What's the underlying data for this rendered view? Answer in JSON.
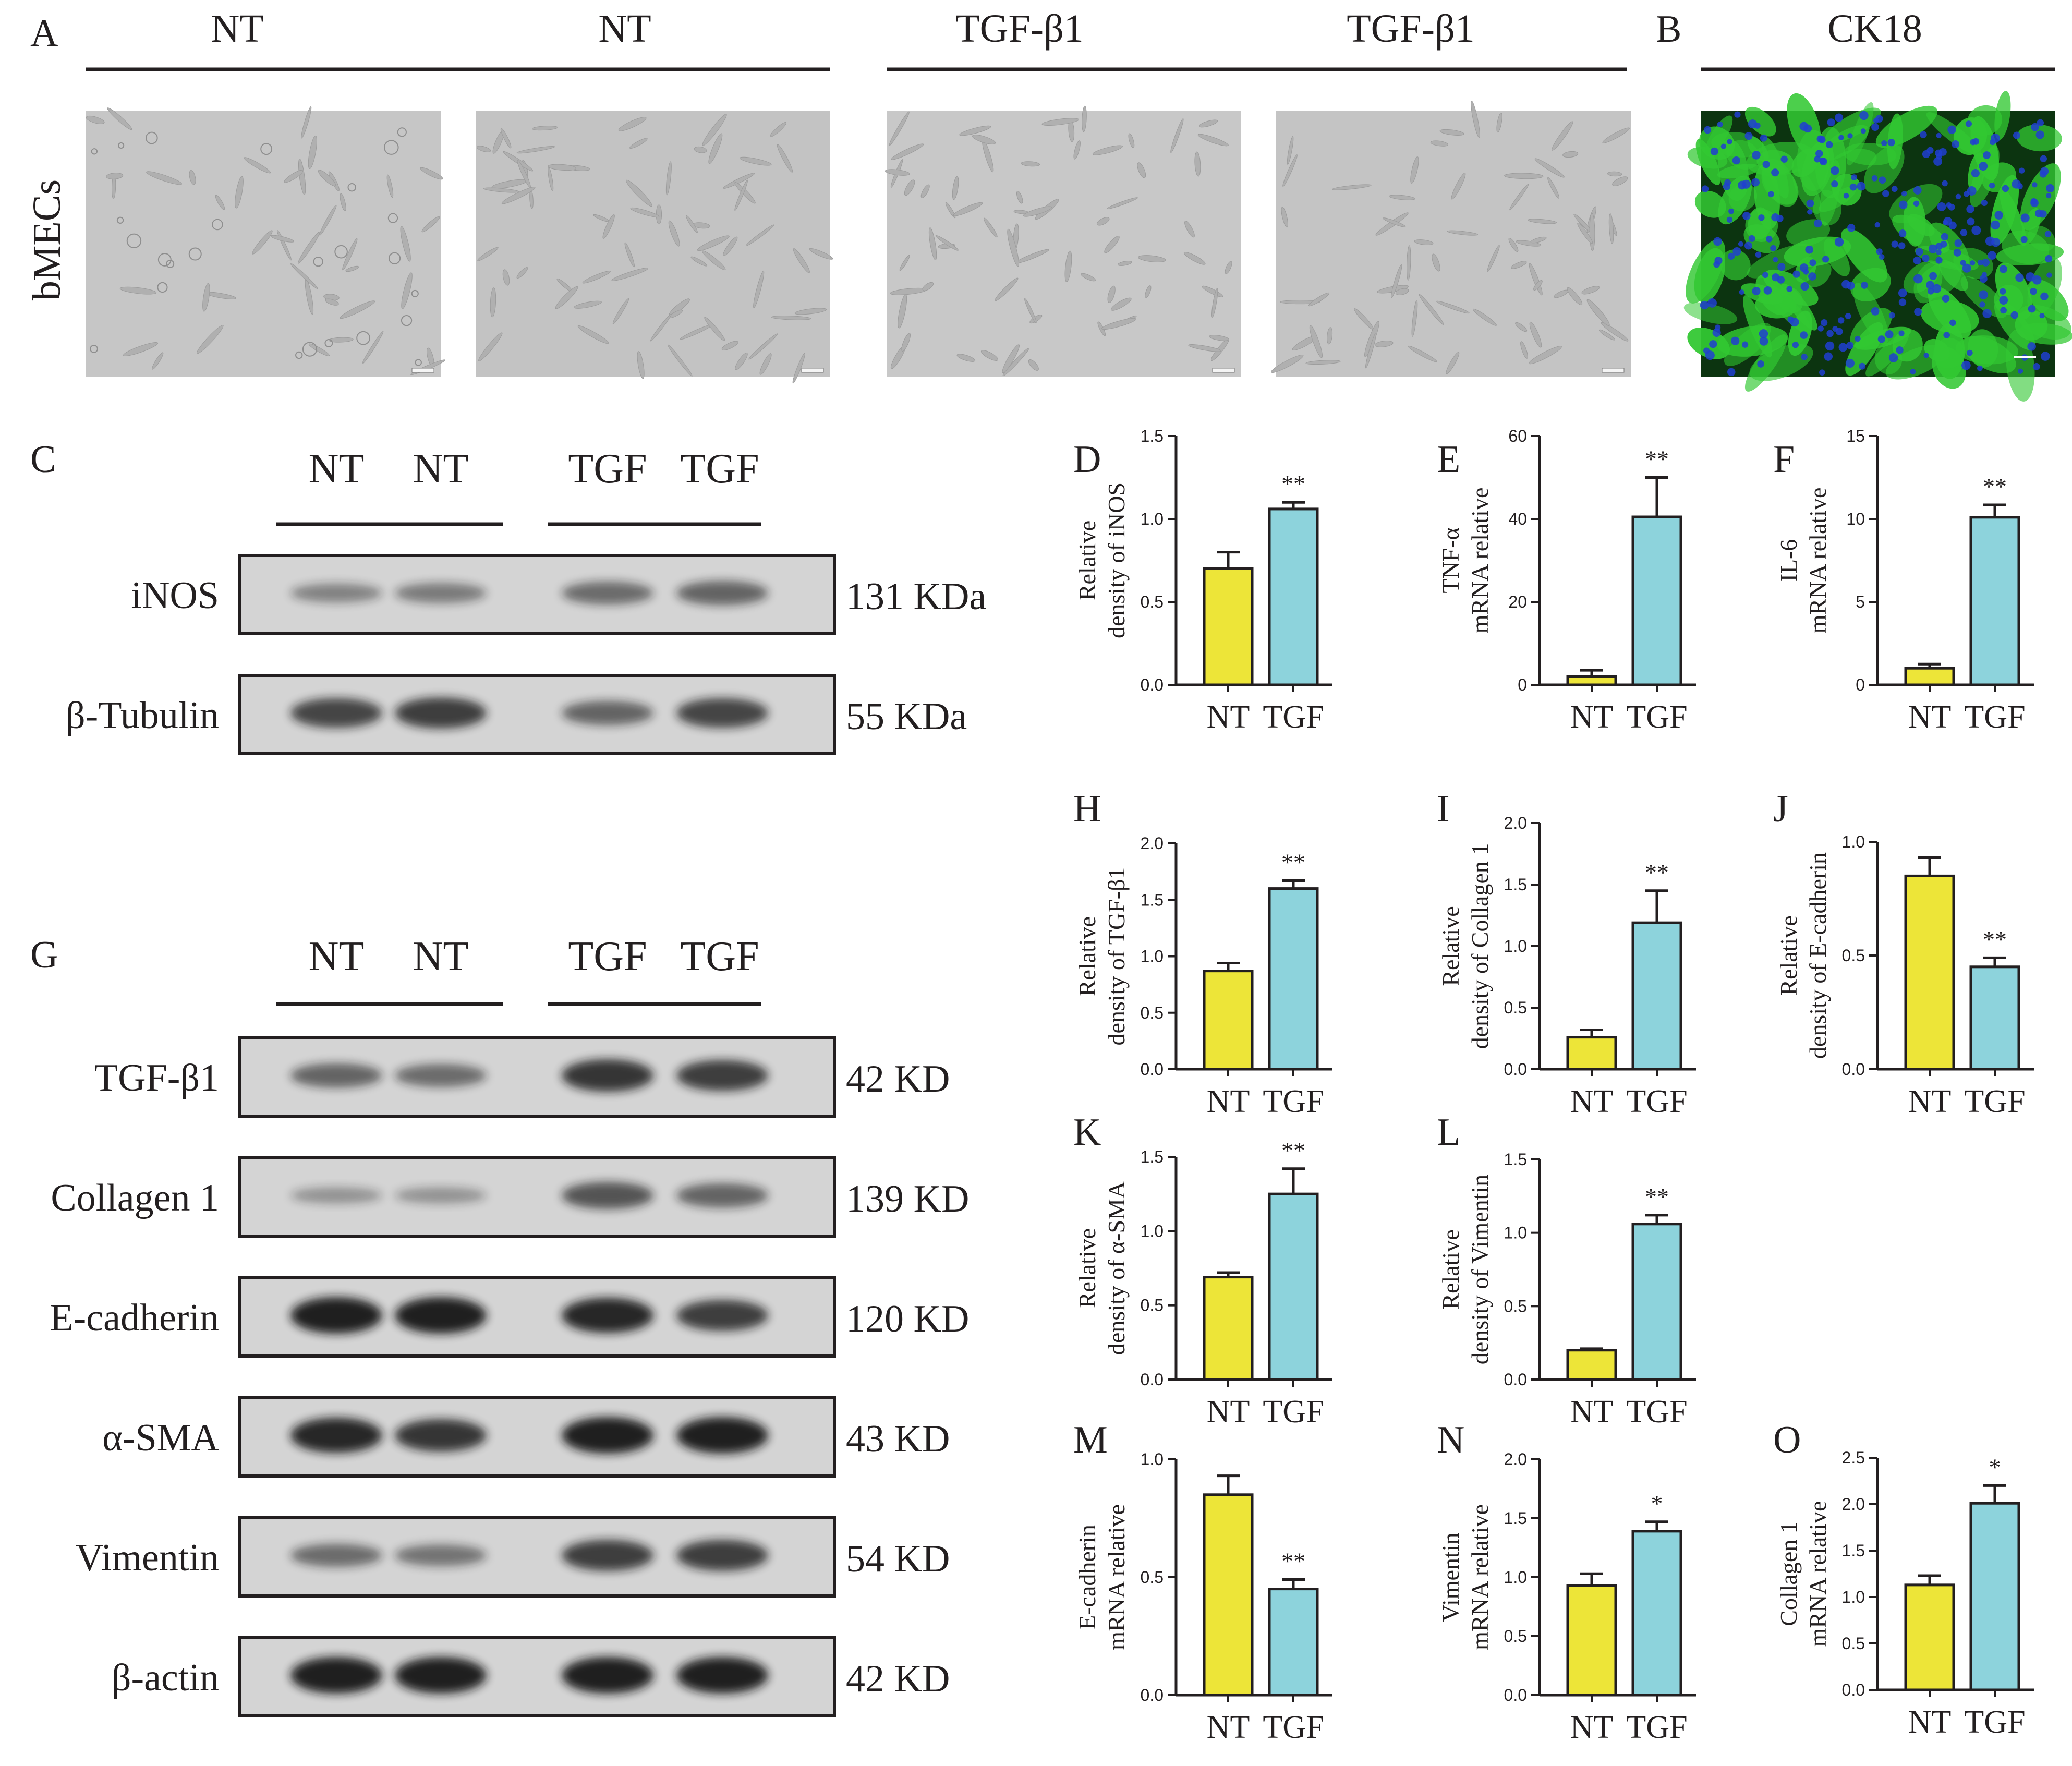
{
  "figure": {
    "panel_letters": [
      "A",
      "B",
      "C",
      "D",
      "E",
      "F",
      "G",
      "H",
      "I",
      "J",
      "K",
      "L",
      "M",
      "N",
      "O"
    ],
    "panel_a": {
      "group_labels": [
        "NT",
        "NT",
        "TGF-β1",
        "TGF-β1"
      ],
      "row_label": "bMECs"
    },
    "panel_b": {
      "label": "CK18"
    },
    "panel_c": {
      "lane_labels": [
        "NT",
        "NT",
        "TGF",
        "TGF"
      ],
      "bands": [
        {
          "protein": "iNOS",
          "size": "131 KDa"
        },
        {
          "protein": "β-Tubulin",
          "size": "55 KDa"
        }
      ]
    },
    "panel_g": {
      "lane_labels": [
        "NT",
        "NT",
        "TGF",
        "TGF"
      ],
      "bands": [
        {
          "protein": "TGF-β1",
          "size": "42 KD"
        },
        {
          "protein": "Collagen 1",
          "size": "139 KD"
        },
        {
          "protein": "E-cadherin",
          "size": "120 KD"
        },
        {
          "protein": "α-SMA",
          "size": "43 KD"
        },
        {
          "protein": "Vimentin",
          "size": "54 KD"
        },
        {
          "protein": "β-actin",
          "size": "42 KD"
        }
      ]
    }
  },
  "colors": {
    "nt_bar": "#ede538",
    "tgf_bar": "#8dd3dc",
    "ink": "#231f20",
    "fluor_green": "#32c832",
    "fluor_blue": "#2040d0"
  },
  "chart_data": [
    {
      "panel": "D",
      "type": "bar",
      "categories": [
        "NT",
        "TGF"
      ],
      "values": [
        0.7,
        1.06
      ],
      "errors": [
        0.1,
        0.04
      ],
      "significance": [
        "",
        "**"
      ],
      "ylabel": [
        "Relative",
        "density of  iNOS"
      ],
      "ylim": [
        0,
        1.5
      ],
      "yticks": [
        "0.0",
        "0.5",
        "1.0",
        "1.5"
      ]
    },
    {
      "panel": "E",
      "type": "bar",
      "categories": [
        "NT",
        "TGF"
      ],
      "values": [
        2.0,
        40.5
      ],
      "errors": [
        1.5,
        9.5
      ],
      "significance": [
        "",
        "**"
      ],
      "ylabel": [
        "TNF-α",
        "mRNA relative"
      ],
      "ylim": [
        0,
        60
      ],
      "yticks": [
        "0",
        "20",
        "40",
        "60"
      ]
    },
    {
      "panel": "F",
      "type": "bar",
      "categories": [
        "NT",
        "TGF"
      ],
      "values": [
        1.0,
        10.1
      ],
      "errors": [
        0.25,
        0.75
      ],
      "significance": [
        "",
        "**"
      ],
      "ylabel": [
        "IL-6",
        "mRNA relative"
      ],
      "ylim": [
        0,
        15
      ],
      "yticks": [
        "0",
        "5",
        "10",
        "15"
      ]
    },
    {
      "panel": "H",
      "type": "bar",
      "categories": [
        "NT",
        "TGF"
      ],
      "values": [
        0.87,
        1.6
      ],
      "errors": [
        0.07,
        0.07
      ],
      "significance": [
        "",
        "**"
      ],
      "ylabel": [
        "Relative",
        "density of TGF-β1"
      ],
      "ylim": [
        0,
        2.0
      ],
      "yticks": [
        "0.0",
        "0.5",
        "1.0",
        "1.5",
        "2.0"
      ]
    },
    {
      "panel": "I",
      "type": "bar",
      "categories": [
        "NT",
        "TGF"
      ],
      "values": [
        0.26,
        1.19
      ],
      "errors": [
        0.06,
        0.26
      ],
      "significance": [
        "",
        "**"
      ],
      "ylabel": [
        "Relative",
        "density of  Collagen 1"
      ],
      "ylim": [
        0,
        2.0
      ],
      "yticks": [
        "0.0",
        "0.5",
        "1.0",
        "1.5",
        "2.0"
      ]
    },
    {
      "panel": "J",
      "type": "bar",
      "categories": [
        "NT",
        "TGF"
      ],
      "values": [
        0.85,
        0.45
      ],
      "errors": [
        0.08,
        0.04
      ],
      "significance": [
        "",
        "**"
      ],
      "ylabel": [
        "Relative",
        "density of E-cadherin"
      ],
      "ylim": [
        0,
        1.0
      ],
      "yticks": [
        "0.0",
        "0.5",
        "1.0"
      ]
    },
    {
      "panel": "K",
      "type": "bar",
      "categories": [
        "NT",
        "TGF"
      ],
      "values": [
        0.69,
        1.25
      ],
      "errors": [
        0.03,
        0.17
      ],
      "significance": [
        "",
        "**"
      ],
      "ylabel": [
        "Relative",
        "density of  α-SMA"
      ],
      "ylim": [
        0,
        1.5
      ],
      "yticks": [
        "0.0",
        "0.5",
        "1.0",
        "1.5"
      ]
    },
    {
      "panel": "L",
      "type": "bar",
      "categories": [
        "NT",
        "TGF"
      ],
      "values": [
        0.2,
        1.06
      ],
      "errors": [
        0.01,
        0.06
      ],
      "significance": [
        "",
        "**"
      ],
      "ylabel": [
        "Relative",
        "density of  Vimentin"
      ],
      "ylim": [
        0,
        1.5
      ],
      "yticks": [
        "0.0",
        "0.5",
        "1.0",
        "1.5"
      ]
    },
    {
      "panel": "M",
      "type": "bar",
      "categories": [
        "NT",
        "TGF"
      ],
      "values": [
        0.85,
        0.45
      ],
      "errors": [
        0.08,
        0.04
      ],
      "significance": [
        "",
        "**"
      ],
      "ylabel": [
        "E-cadherin",
        "mRNA relative"
      ],
      "ylim": [
        0,
        1.0
      ],
      "yticks": [
        "0.0",
        "0.5",
        "1.0"
      ]
    },
    {
      "panel": "N",
      "type": "bar",
      "categories": [
        "NT",
        "TGF"
      ],
      "values": [
        0.93,
        1.39
      ],
      "errors": [
        0.1,
        0.08
      ],
      "significance": [
        "",
        "*"
      ],
      "ylabel": [
        "Vimentin",
        "mRNA relative"
      ],
      "ylim": [
        0,
        2.0
      ],
      "yticks": [
        "0.0",
        "0.5",
        "1.0",
        "1.5",
        "2.0"
      ]
    },
    {
      "panel": "O",
      "type": "bar",
      "categories": [
        "NT",
        "TGF"
      ],
      "values": [
        1.13,
        2.01
      ],
      "errors": [
        0.1,
        0.19
      ],
      "significance": [
        "",
        "*"
      ],
      "ylabel": [
        "Collagen 1",
        "mRNA relative"
      ],
      "ylim": [
        0,
        2.5
      ],
      "yticks": [
        "0.0",
        "0.5",
        "1.0",
        "1.5",
        "2.0",
        "2.5"
      ]
    }
  ]
}
